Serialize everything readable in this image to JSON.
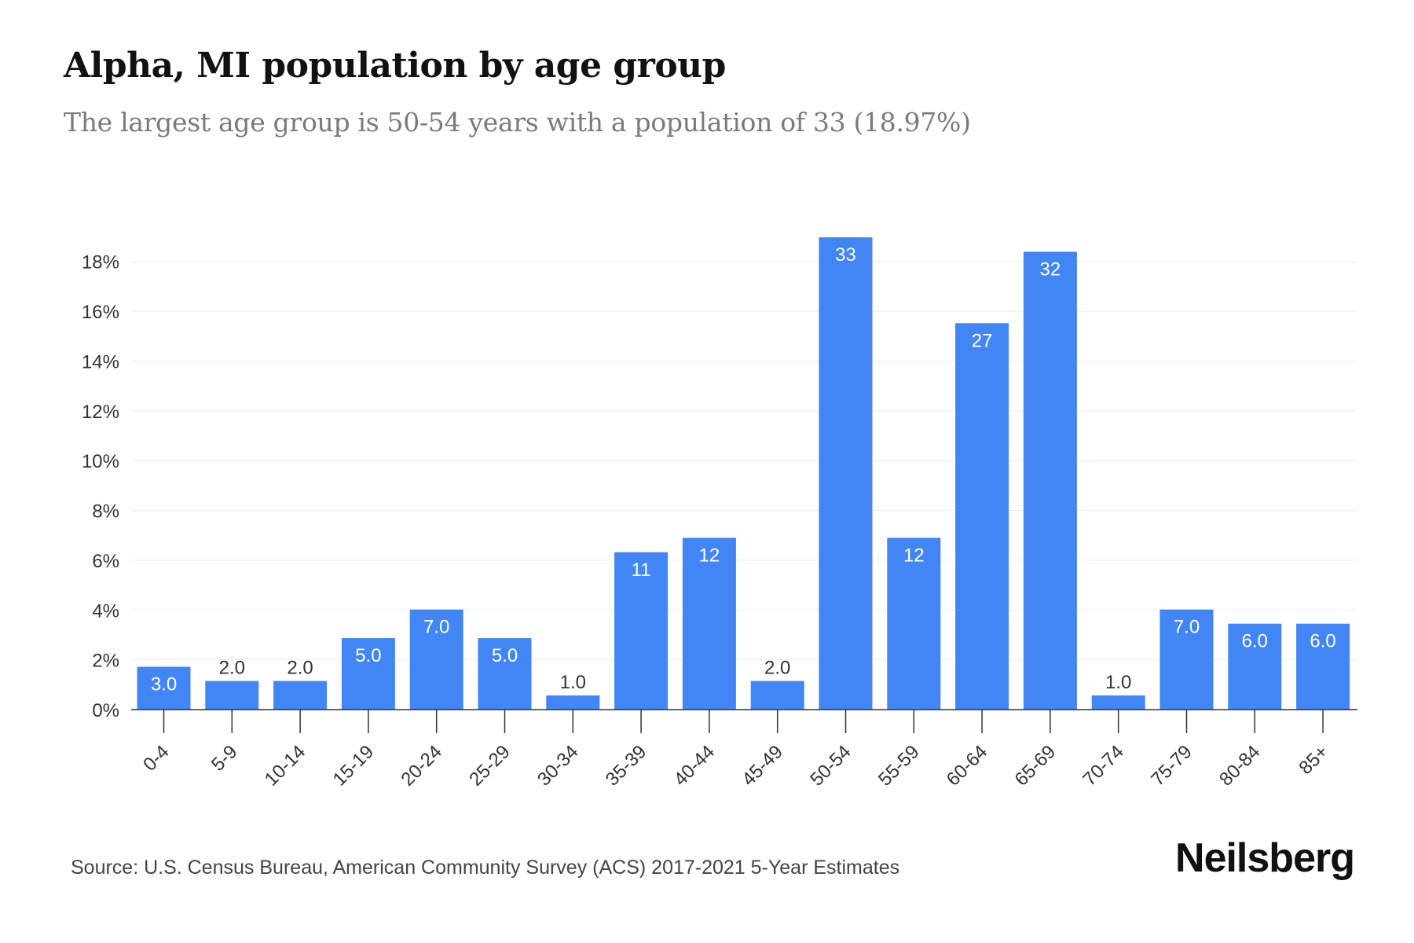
{
  "header": {
    "title": "Alpha, MI population by age group",
    "subtitle": "The largest age group is 50-54 years with a population of 33 (18.97%)"
  },
  "footer": {
    "source": "Source: U.S. Census Bureau, American Community Survey (ACS) 2017-2021 5-Year Estimates",
    "brand": "Neilsberg"
  },
  "colors": {
    "bar": "#4285f4",
    "grid": "#ebebeb",
    "axis": "#333333",
    "label_inside": "#ffffff",
    "label_outside": "#333333"
  },
  "chart_data": {
    "type": "bar",
    "title": "Alpha, MI population by age group",
    "subtitle": "The largest age group is 50-54 years with a population of 33 (18.97%)",
    "categories": [
      "0-4",
      "5-9",
      "10-14",
      "15-19",
      "20-24",
      "25-29",
      "30-34",
      "35-39",
      "40-44",
      "45-49",
      "50-54",
      "55-59",
      "60-64",
      "65-69",
      "70-74",
      "75-79",
      "80-84",
      "85+"
    ],
    "values": [
      1.72,
      1.15,
      1.15,
      2.87,
      4.02,
      2.87,
      0.57,
      6.32,
      6.9,
      1.15,
      18.97,
      6.9,
      15.52,
      18.39,
      0.57,
      4.02,
      3.45,
      3.45
    ],
    "data_labels": [
      "3.0",
      "2.0",
      "2.0",
      "5.0",
      "7.0",
      "5.0",
      "1.0",
      "11",
      "12",
      "2.0",
      "33",
      "12",
      "27",
      "32",
      "1.0",
      "7.0",
      "6.0",
      "6.0"
    ],
    "y_ticks": [
      0,
      2,
      4,
      6,
      8,
      10,
      12,
      14,
      16,
      18
    ],
    "y_tick_labels": [
      "0%",
      "2%",
      "4%",
      "6%",
      "8%",
      "10%",
      "12%",
      "14%",
      "16%",
      "18%"
    ],
    "ylim": [
      0,
      18.97
    ],
    "xlabel": "",
    "ylabel": "",
    "grid": true,
    "legend": "none"
  }
}
